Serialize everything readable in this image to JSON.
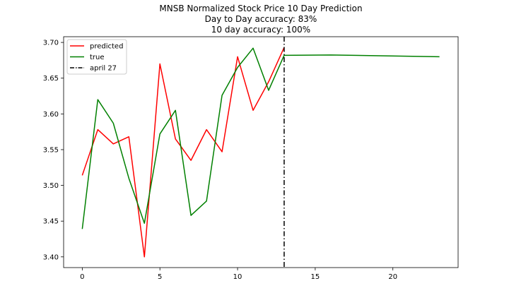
{
  "chart_data": {
    "type": "line",
    "title_lines": [
      "MNSB Normalized Stock Price 10 Day Prediction",
      "Day to Day accuracy: 83%",
      "10 day accuracy: 100%"
    ],
    "xlabel": "",
    "ylabel": "",
    "xlim": [
      -1.2,
      24.2
    ],
    "ylim": [
      3.385,
      3.708
    ],
    "x_ticks": [
      0,
      5,
      10,
      15,
      20
    ],
    "x_tick_labels": [
      "0",
      "5",
      "10",
      "15",
      "20"
    ],
    "y_ticks": [
      3.4,
      3.45,
      3.5,
      3.55,
      3.6,
      3.65,
      3.7
    ],
    "y_tick_labels": [
      "3.40",
      "3.45",
      "3.50",
      "3.55",
      "3.60",
      "3.65",
      "3.70"
    ],
    "grid": false,
    "legend_position": "top-left",
    "series": [
      {
        "name": "predicted",
        "color": "#ff0000",
        "x": [
          0,
          1,
          2,
          3,
          4,
          5,
          6,
          7,
          8,
          9,
          10,
          11,
          12,
          13
        ],
        "y": [
          3.514,
          3.578,
          3.558,
          3.568,
          3.4,
          3.67,
          3.565,
          3.535,
          3.578,
          3.547,
          3.68,
          3.605,
          3.645,
          3.693
        ]
      },
      {
        "name": "true",
        "color": "#008000",
        "x": [
          0,
          1,
          2,
          3,
          4,
          5,
          6,
          7,
          8,
          9,
          10,
          11,
          12,
          13,
          16,
          23
        ],
        "y": [
          3.439,
          3.62,
          3.587,
          3.51,
          3.447,
          3.572,
          3.605,
          3.458,
          3.478,
          3.626,
          3.665,
          3.692,
          3.633,
          3.682,
          3.6825,
          3.68
        ]
      }
    ],
    "vline": {
      "name": "april 27",
      "x": 13,
      "color": "#000000",
      "style": "dashdot"
    }
  }
}
